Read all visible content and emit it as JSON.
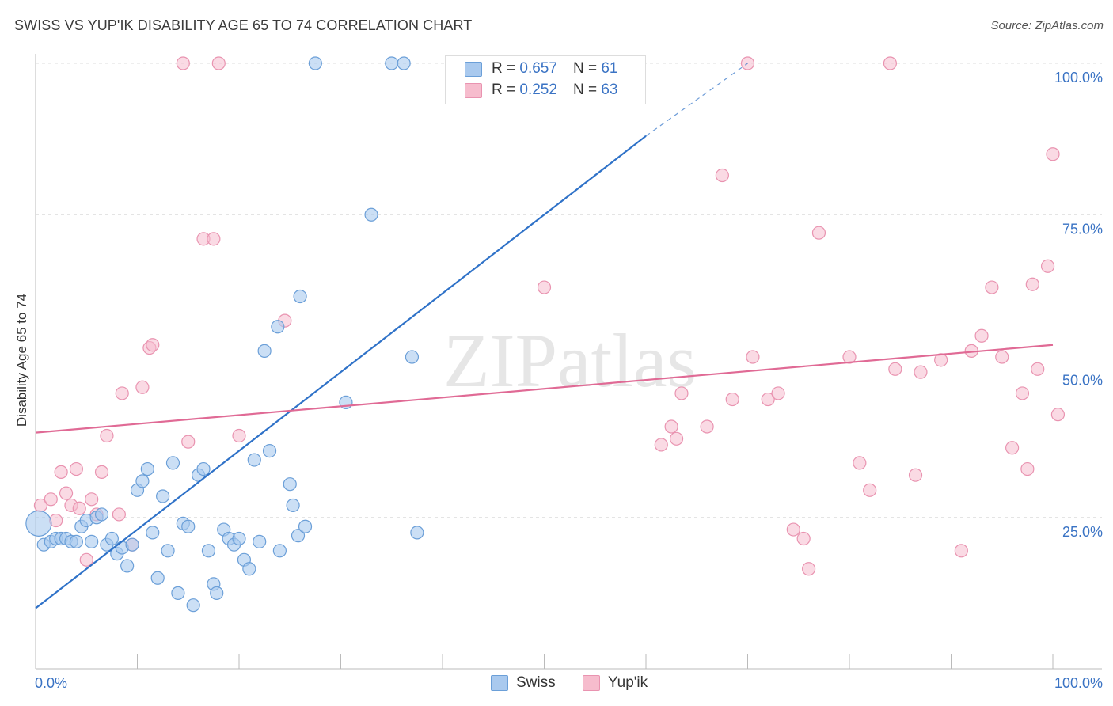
{
  "header": {
    "title": "SWISS VS YUP'IK DISABILITY AGE 65 TO 74 CORRELATION CHART",
    "source": "Source: ZipAtlas.com"
  },
  "legend": {
    "swiss": {
      "r_label": "R = ",
      "r_value": "0.657",
      "n_label": "N = ",
      "n_value": "61"
    },
    "yupik": {
      "r_label": "R = ",
      "r_value": "0.252",
      "n_label": "N = ",
      "n_value": "63"
    }
  },
  "colors": {
    "swiss_fill": "#a9c9ee",
    "swiss_stroke": "#6b9fd8",
    "swiss_line": "#2f72c8",
    "yupik_fill": "#f6bccd",
    "yupik_stroke": "#e993b0",
    "yupik_line": "#e06a95",
    "tick_label": "#3a73c4",
    "grid": "#dcdcdc"
  },
  "chart_data": {
    "type": "scatter",
    "xlabel": "",
    "ylabel": "Disability Age 65 to 74",
    "xlim": [
      0,
      100
    ],
    "ylim": [
      0,
      100
    ],
    "x_tick_labels": [
      {
        "value": 0,
        "label": "0.0%"
      },
      {
        "value": 100,
        "label": "100.0%"
      }
    ],
    "y_tick_labels": [
      {
        "value": 25,
        "label": "25.0%"
      },
      {
        "value": 50,
        "label": "50.0%"
      },
      {
        "value": 75,
        "label": "75.0%"
      },
      {
        "value": 100,
        "label": "100.0%"
      }
    ],
    "watermark": "ZIPatlas",
    "series": [
      {
        "name": "Swiss",
        "trendline": {
          "x": [
            0,
            60
          ],
          "y": [
            10,
            88
          ],
          "extended_to": [
            70,
            100
          ]
        },
        "points": [
          [
            0.3,
            24
          ],
          [
            0.8,
            20.5
          ],
          [
            1.5,
            21
          ],
          [
            2,
            21.5
          ],
          [
            2.5,
            21.5
          ],
          [
            3,
            21.5
          ],
          [
            3.5,
            21
          ],
          [
            4,
            21
          ],
          [
            4.5,
            23.5
          ],
          [
            5,
            24.5
          ],
          [
            5.5,
            21
          ],
          [
            6,
            25
          ],
          [
            6.5,
            25.5
          ],
          [
            7,
            20.5
          ],
          [
            7.5,
            21.5
          ],
          [
            8,
            19
          ],
          [
            8.5,
            20
          ],
          [
            9,
            17
          ],
          [
            9.5,
            20.5
          ],
          [
            10,
            29.5
          ],
          [
            10.5,
            31
          ],
          [
            11,
            33
          ],
          [
            11.5,
            22.5
          ],
          [
            12,
            15
          ],
          [
            12.5,
            28.5
          ],
          [
            13,
            19.5
          ],
          [
            13.5,
            34
          ],
          [
            14,
            12.5
          ],
          [
            14.5,
            24
          ],
          [
            15,
            23.5
          ],
          [
            15.5,
            10.5
          ],
          [
            16,
            32
          ],
          [
            16.5,
            33
          ],
          [
            17,
            19.5
          ],
          [
            17.5,
            14
          ],
          [
            17.8,
            12.5
          ],
          [
            18.5,
            23
          ],
          [
            19,
            21.5
          ],
          [
            19.5,
            20.5
          ],
          [
            20,
            21.5
          ],
          [
            20.5,
            18
          ],
          [
            21,
            16.5
          ],
          [
            21.5,
            34.5
          ],
          [
            22,
            21
          ],
          [
            22.5,
            52.5
          ],
          [
            23,
            36
          ],
          [
            23.8,
            56.5
          ],
          [
            24,
            19.5
          ],
          [
            25,
            30.5
          ],
          [
            25.3,
            27
          ],
          [
            25.8,
            22
          ],
          [
            26,
            61.5
          ],
          [
            26.5,
            23.5
          ],
          [
            27.5,
            100
          ],
          [
            30.5,
            44
          ],
          [
            33,
            75
          ],
          [
            35,
            100
          ],
          [
            36.2,
            100
          ],
          [
            37,
            51.5
          ],
          [
            37.5,
            22.5
          ],
          [
            52.5,
            100
          ]
        ]
      },
      {
        "name": "Yup'ik",
        "trendline": {
          "x": [
            0,
            100
          ],
          "y": [
            39,
            53.5
          ]
        },
        "points": [
          [
            0.5,
            27
          ],
          [
            1.5,
            28
          ],
          [
            2,
            24.5
          ],
          [
            2.5,
            32.5
          ],
          [
            3,
            29
          ],
          [
            3.5,
            27
          ],
          [
            4,
            33
          ],
          [
            4.3,
            26.5
          ],
          [
            5,
            18
          ],
          [
            5.5,
            28
          ],
          [
            6,
            25.5
          ],
          [
            6.5,
            32.5
          ],
          [
            7,
            38.5
          ],
          [
            8.2,
            25.5
          ],
          [
            8.5,
            45.5
          ],
          [
            9.5,
            20.5
          ],
          [
            10.5,
            46.5
          ],
          [
            11.2,
            53
          ],
          [
            11.5,
            53.5
          ],
          [
            15,
            37.5
          ],
          [
            14.5,
            100
          ],
          [
            16.5,
            71
          ],
          [
            17.5,
            71
          ],
          [
            18,
            100
          ],
          [
            20,
            38.5
          ],
          [
            24.5,
            57.5
          ],
          [
            50,
            63
          ],
          [
            61.5,
            37
          ],
          [
            62.5,
            40
          ],
          [
            63,
            38
          ],
          [
            63.5,
            45.5
          ],
          [
            66,
            40
          ],
          [
            67.5,
            81.5
          ],
          [
            68.5,
            44.5
          ],
          [
            70,
            100
          ],
          [
            70.5,
            51.5
          ],
          [
            72,
            44.5
          ],
          [
            73,
            45.5
          ],
          [
            74.5,
            23
          ],
          [
            75.5,
            21.5
          ],
          [
            76,
            16.5
          ],
          [
            77,
            72
          ],
          [
            80,
            51.5
          ],
          [
            81,
            34
          ],
          [
            82,
            29.5
          ],
          [
            84,
            100
          ],
          [
            84.5,
            49.5
          ],
          [
            86.5,
            32
          ],
          [
            87,
            49
          ],
          [
            89,
            51
          ],
          [
            91,
            19.5
          ],
          [
            92,
            52.5
          ],
          [
            93,
            55
          ],
          [
            94,
            63
          ],
          [
            95,
            51.5
          ],
          [
            96,
            36.5
          ],
          [
            97,
            45.5
          ],
          [
            97.5,
            33
          ],
          [
            98,
            63.5
          ],
          [
            98.5,
            49.5
          ],
          [
            99.5,
            66.5
          ],
          [
            100,
            85
          ],
          [
            100.5,
            42
          ]
        ]
      }
    ]
  },
  "bottom_legend": {
    "swiss_label": "Swiss",
    "yupik_label": "Yup'ik"
  }
}
